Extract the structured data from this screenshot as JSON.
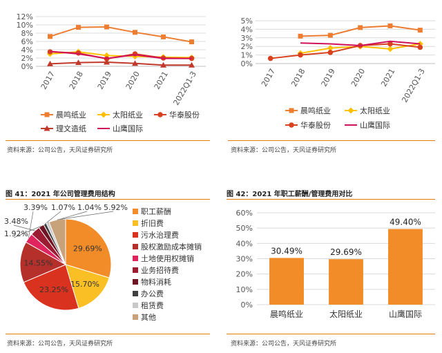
{
  "colors": {
    "orange": "#ED7D31",
    "yellow": "#FFC000",
    "red": "#D9411E",
    "darkred": "#C0392B",
    "magenta": "#D0105A",
    "accent": "#E07B00",
    "grid": "#D9D9D9"
  },
  "source_text": "资料来源：公司公告，天风证券研究所",
  "chart_data": [
    {
      "type": "line",
      "categories": [
        "2017",
        "2018",
        "2019",
        "2020",
        "2021",
        "2022Q1-3"
      ],
      "ylim": [
        0,
        12
      ],
      "yticks": [
        "0%",
        "2%",
        "4%",
        "6%",
        "8%",
        "10%",
        "12%"
      ],
      "ytick_values": [
        0,
        2,
        4,
        6,
        8,
        10,
        12
      ],
      "series": [
        {
          "name": "晨鸣纸业",
          "marker": "square",
          "color": "#ED7D31",
          "values": [
            7.2,
            9.4,
            9.5,
            8.2,
            7.1,
            5.9
          ]
        },
        {
          "name": "太阳纸业",
          "marker": "diamond",
          "color": "#FFC000",
          "values": [
            3.0,
            3.5,
            2.6,
            2.4,
            2.2,
            2.1
          ]
        },
        {
          "name": "华泰股份",
          "marker": "circle",
          "color": "#D9411E",
          "values": [
            3.5,
            3.2,
            1.8,
            3.0,
            2.0,
            1.9
          ]
        },
        {
          "name": "理文造纸",
          "marker": "triangle",
          "color": "#C0392B",
          "values": [
            0.6,
            0.9,
            1.0,
            0.7,
            0.3,
            0.3
          ]
        },
        {
          "name": "山鹰国际",
          "marker": "none",
          "color": "#D0105A",
          "values": [
            3.6,
            3.0,
            1.9,
            2.8,
            1.9,
            1.9
          ]
        }
      ],
      "legend": [
        [
          "晨鸣纸业",
          "太阳纸业",
          "华泰股份"
        ],
        [
          "理文造纸",
          "山鹰国际"
        ]
      ]
    },
    {
      "type": "line",
      "categories": [
        "2017",
        "2018",
        "2019",
        "2020",
        "2021",
        "2022Q1-3"
      ],
      "ylim": [
        0,
        5
      ],
      "yticks": [
        "0%",
        "1%",
        "2%",
        "3%",
        "4%",
        "5%"
      ],
      "ytick_values": [
        0,
        1,
        2,
        3,
        4,
        5
      ],
      "series": [
        {
          "name": "晨鸣纸业",
          "marker": "square",
          "color": "#ED7D31",
          "values": [
            null,
            3.2,
            3.3,
            4.2,
            4.4,
            3.9
          ]
        },
        {
          "name": "太阳纸业",
          "marker": "diamond",
          "color": "#FFC000",
          "values": [
            null,
            1.2,
            1.8,
            2.0,
            1.7,
            2.3
          ]
        },
        {
          "name": "华泰股份",
          "marker": "circle",
          "color": "#D9411E",
          "values": [
            0.6,
            1.0,
            1.3,
            2.1,
            2.3,
            1.9
          ]
        },
        {
          "name": "山鹰国际",
          "marker": "none",
          "color": "#D0105A",
          "values": [
            null,
            2.4,
            2.3,
            2.1,
            2.6,
            2.3
          ]
        }
      ],
      "legend": [
        [
          "晨鸣纸业",
          "太阳纸业"
        ],
        [
          "华泰股份",
          "山鹰国际"
        ]
      ]
    },
    {
      "type": "pie",
      "title": "图 41：2021 年公司管理费用结构",
      "slices": [
        {
          "label": "职工薪酬",
          "value": 29.69,
          "text": "29.69%",
          "color": "#F28C28"
        },
        {
          "label": "折旧费",
          "value": 15.7,
          "text": "15.70%",
          "color": "#FBBF26"
        },
        {
          "label": "污水治理费",
          "value": 23.25,
          "text": "23.25%",
          "color": "#D9321F"
        },
        {
          "label": "股权激励成本摊销",
          "value": 14.55,
          "text": "14.55%",
          "color": "#B5302A"
        },
        {
          "label": "土地使用权摊销",
          "value": 3.39,
          "text": "3.39%",
          "color": "#E0245E"
        },
        {
          "label": "业务招待费",
          "value": 3.48,
          "text": "3.48%",
          "color": "#9B1B30"
        },
        {
          "label": "物料消耗",
          "value": 1.92,
          "text": "1.92%",
          "color": "#6E1423"
        },
        {
          "label": "办公费",
          "value": 1.07,
          "text": "1.07%",
          "color": "#404040"
        },
        {
          "label": "租赁费",
          "value": 1.04,
          "text": "1.04%",
          "color": "#C9C9C9"
        },
        {
          "label": "其他",
          "value": 5.92,
          "text": "5.92%",
          "color": "#C8A27A"
        }
      ]
    },
    {
      "type": "bar",
      "title": "图 42：2021 年职工薪酬/管理费用对比",
      "categories": [
        "晨鸣纸业",
        "太阳纸业",
        "山鹰国际"
      ],
      "values": [
        30.49,
        29.69,
        49.4
      ],
      "labels": [
        "30.49%",
        "29.69%",
        "49.40%"
      ],
      "ylim": [
        0,
        60
      ],
      "yticks": [
        "0%",
        "10%",
        "20%",
        "30%",
        "40%",
        "50%",
        "60%"
      ],
      "ytick_values": [
        0,
        10,
        20,
        30,
        40,
        50,
        60
      ],
      "color": "#F28C28"
    }
  ]
}
